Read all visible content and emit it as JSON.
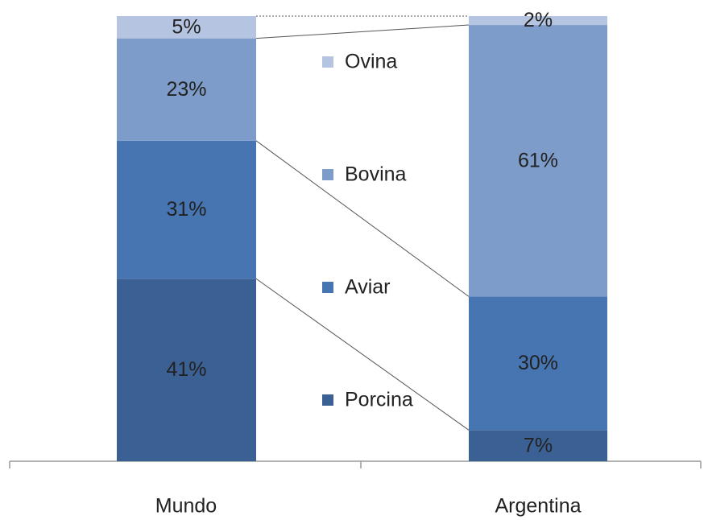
{
  "chart_data": {
    "type": "bar",
    "stacked": true,
    "categories": [
      "Mundo",
      "Argentina"
    ],
    "series": [
      {
        "name": "Porcina",
        "color": "#3b6194",
        "values": [
          41,
          7
        ],
        "value_labels": [
          "41%",
          "7%"
        ]
      },
      {
        "name": "Aviar",
        "color": "#4675b1",
        "values": [
          31,
          30
        ],
        "value_labels": [
          "31%",
          "30%"
        ]
      },
      {
        "name": "Bovina",
        "color": "#7e9cca",
        "values": [
          23,
          61
        ],
        "value_labels": [
          "23%",
          "61%"
        ]
      },
      {
        "name": "Ovina",
        "color": "#b5c5e1",
        "values": [
          5,
          2
        ],
        "value_labels": [
          "5%",
          "2%"
        ]
      }
    ],
    "ylim": [
      0,
      100
    ]
  }
}
